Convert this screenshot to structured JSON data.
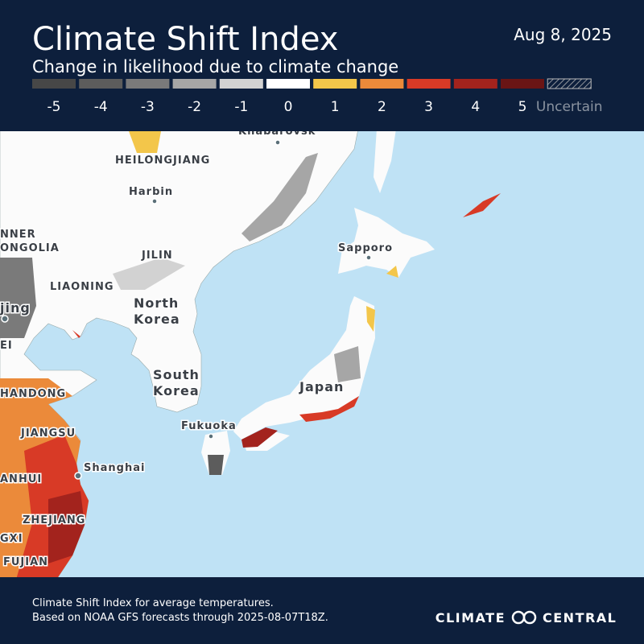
{
  "header": {
    "title": "Climate Shift Index",
    "subtitle": "Change in likelihood due to climate change",
    "date": "Aug 8, 2025"
  },
  "legend": [
    {
      "label": "-5",
      "color": "#474747"
    },
    {
      "label": "-4",
      "color": "#5c5c5c"
    },
    {
      "label": "-3",
      "color": "#7a7a7a"
    },
    {
      "label": "-2",
      "color": "#a6a6a6"
    },
    {
      "label": "-1",
      "color": "#d2d2d2"
    },
    {
      "label": "0",
      "color": "#ffffff"
    },
    {
      "label": "1",
      "color": "#f3c64a"
    },
    {
      "label": "2",
      "color": "#eb8a3a"
    },
    {
      "label": "3",
      "color": "#d83a26"
    },
    {
      "label": "4",
      "color": "#a3231d"
    },
    {
      "label": "5",
      "color": "#6a1515"
    },
    {
      "label": "Uncertain"
    }
  ],
  "map_labels": [
    "Khabarovsk",
    "HEILONGJIANG",
    "Harbin",
    "NNER",
    "ONGOLIA",
    "JILIN",
    "LIAONING",
    "North",
    "Korea",
    "jing",
    "EI",
    "Sapporo",
    "South",
    "Korea",
    "Japan",
    "HANDONG",
    "JIANGSU",
    "Fukuoka",
    "Shanghai",
    "ANHUI",
    "ZHEJIANG",
    "GXI",
    "FUJIAN"
  ],
  "footer": {
    "line1": "Climate Shift Index for average temperatures.",
    "line2": "Based on NOAA GFS forecasts through 2025-08-07T18Z.",
    "logo_left": "CLIMATE",
    "logo_right": "CENTRAL"
  }
}
